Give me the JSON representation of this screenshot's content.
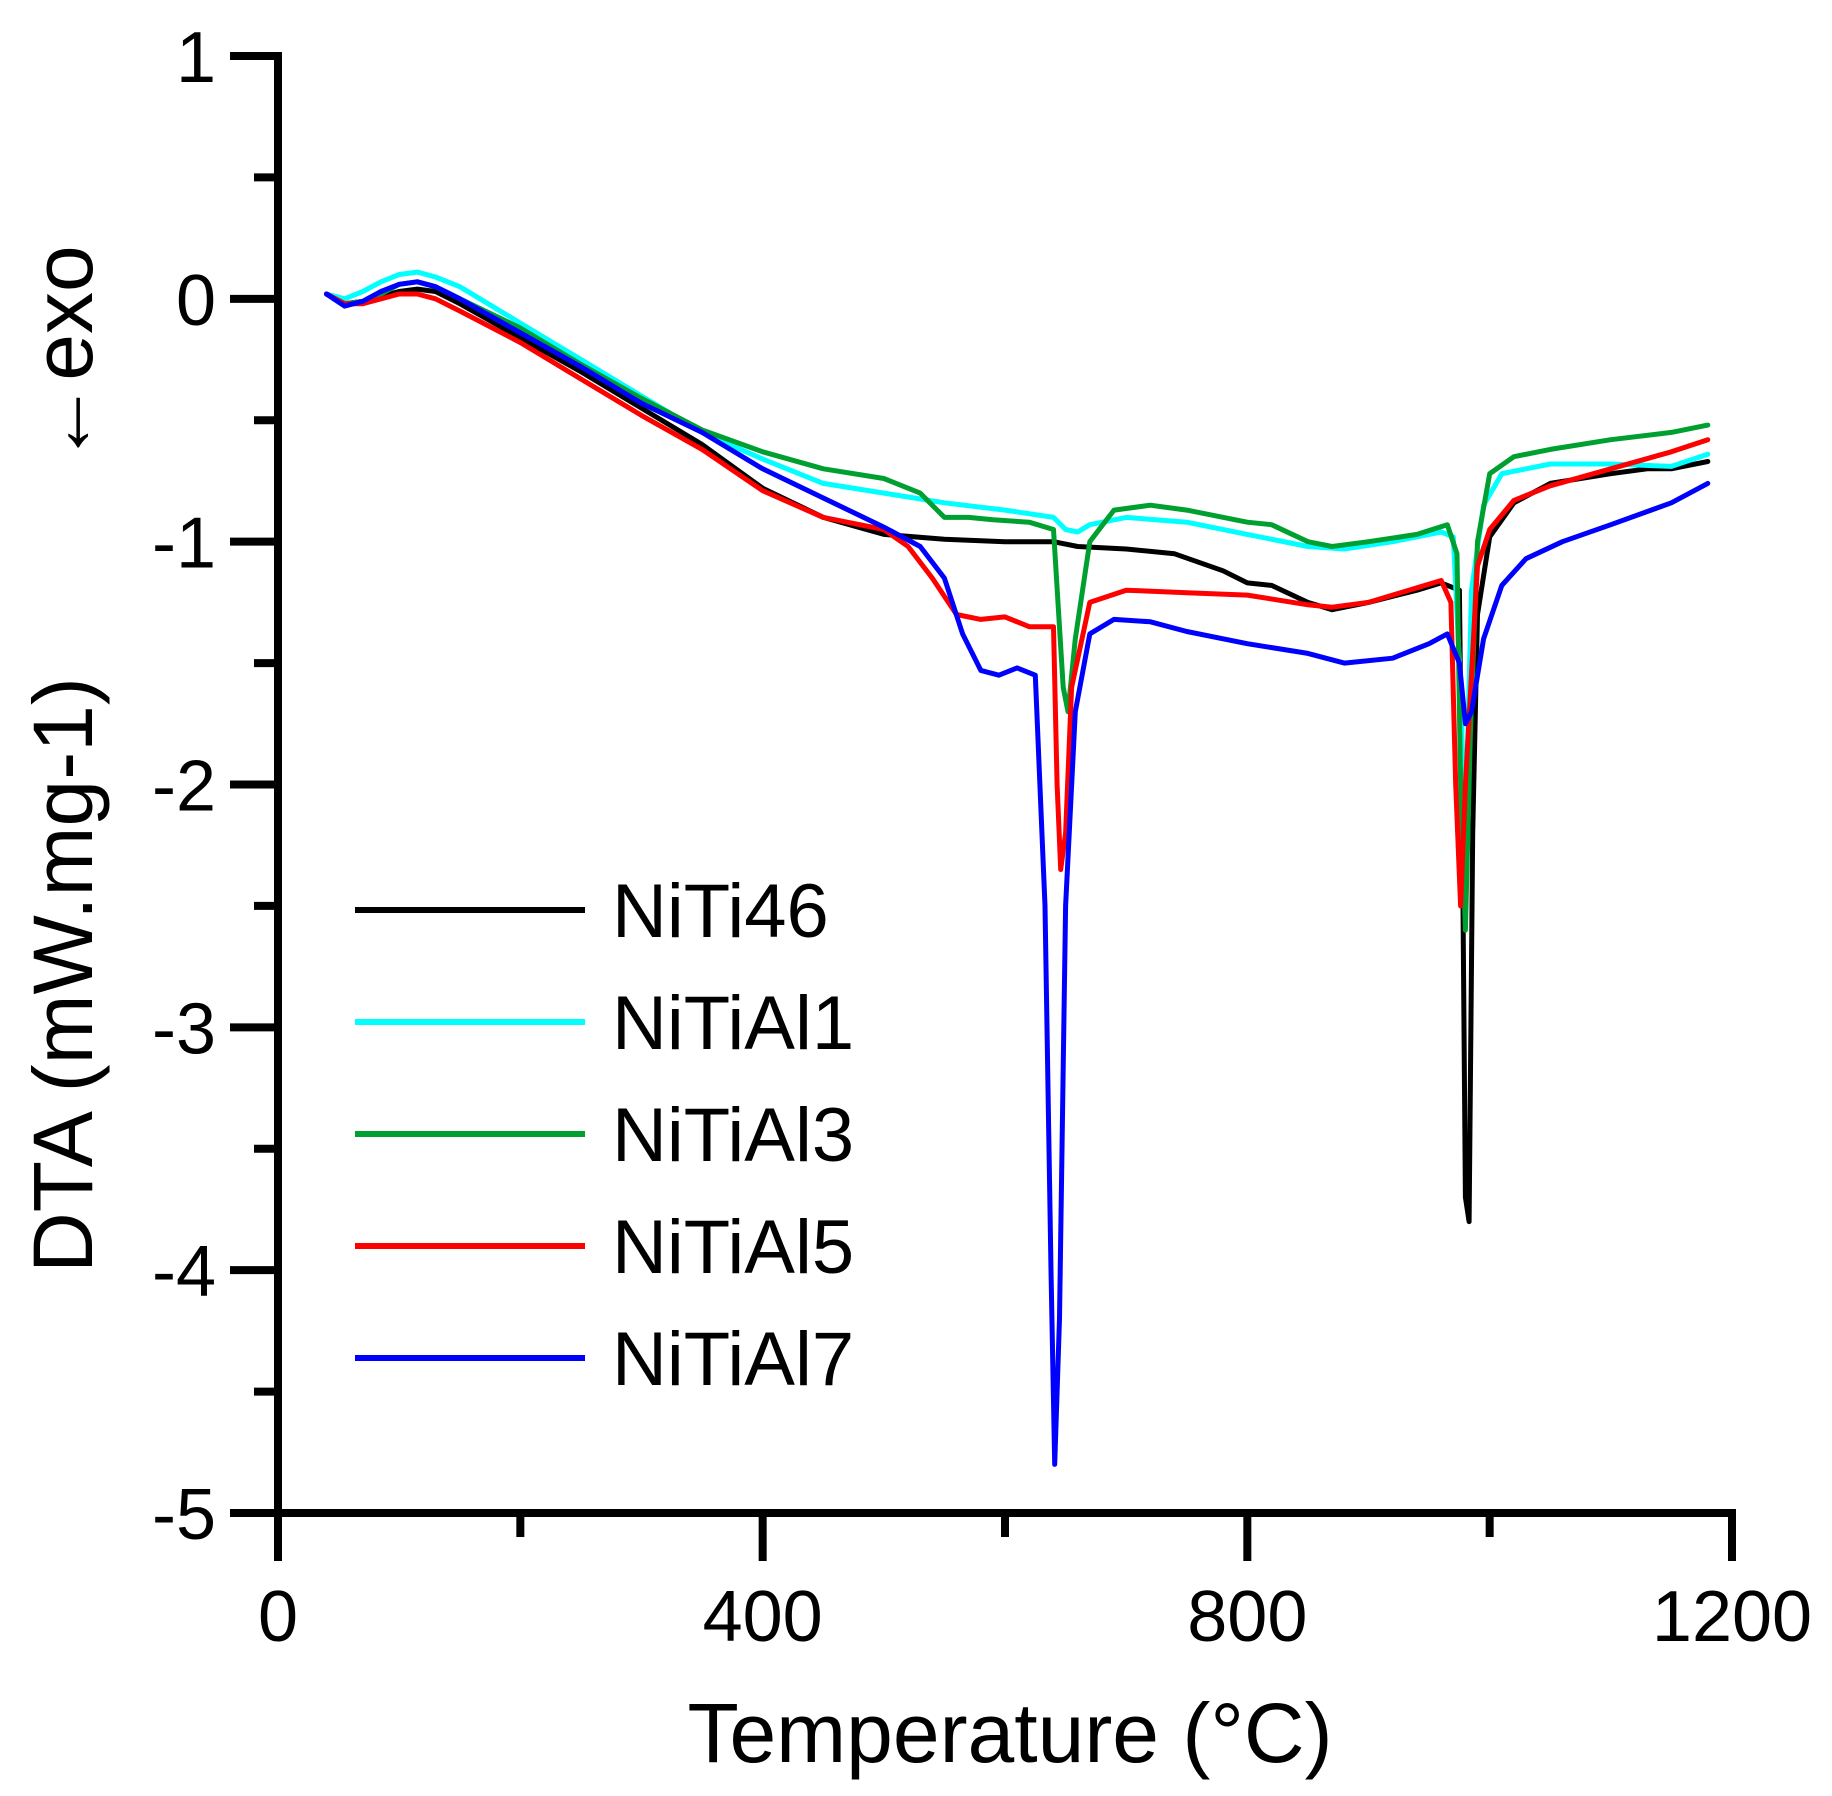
{
  "chart_data": {
    "type": "line",
    "xlabel": "Temperature (°C)",
    "ylabel": "DTA (mW.mg-1)",
    "ylabel_annotation": "←exo",
    "xlim": [
      0,
      1200
    ],
    "ylim": [
      -5,
      1
    ],
    "x_ticks": [
      0,
      400,
      800,
      1200
    ],
    "x_tick_labels": [
      "0",
      "400",
      "800",
      "1200"
    ],
    "y_ticks": [
      1,
      0,
      -1,
      -2,
      -3,
      -4,
      -5
    ],
    "y_tick_labels": [
      "1",
      "0",
      "-1",
      "-2",
      "-3",
      "-4",
      "-5"
    ],
    "grid": false,
    "legend_position": "bottom-left",
    "series": [
      {
        "name": "NiTi46",
        "color": "#000000",
        "points": [
          [
            40,
            0.02
          ],
          [
            55,
            -0.02
          ],
          [
            70,
            -0.01
          ],
          [
            85,
            0.01
          ],
          [
            100,
            0.03
          ],
          [
            115,
            0.04
          ],
          [
            130,
            0.03
          ],
          [
            150,
            -0.02
          ],
          [
            200,
            -0.16
          ],
          [
            250,
            -0.3
          ],
          [
            300,
            -0.45
          ],
          [
            350,
            -0.6
          ],
          [
            400,
            -0.78
          ],
          [
            450,
            -0.9
          ],
          [
            500,
            -0.97
          ],
          [
            550,
            -0.99
          ],
          [
            600,
            -1.0
          ],
          [
            640,
            -1.0
          ],
          [
            660,
            -1.02
          ],
          [
            700,
            -1.03
          ],
          [
            740,
            -1.05
          ],
          [
            780,
            -1.12
          ],
          [
            800,
            -1.17
          ],
          [
            820,
            -1.18
          ],
          [
            850,
            -1.25
          ],
          [
            870,
            -1.28
          ],
          [
            900,
            -1.25
          ],
          [
            940,
            -1.2
          ],
          [
            960,
            -1.17
          ],
          [
            975,
            -1.2
          ],
          [
            978,
            -2.5
          ],
          [
            980,
            -3.7
          ],
          [
            983,
            -3.8
          ],
          [
            986,
            -2.2
          ],
          [
            990,
            -1.3
          ],
          [
            1000,
            -0.98
          ],
          [
            1020,
            -0.84
          ],
          [
            1050,
            -0.76
          ],
          [
            1100,
            -0.72
          ],
          [
            1130,
            -0.7
          ],
          [
            1150,
            -0.7
          ],
          [
            1180,
            -0.67
          ]
        ]
      },
      {
        "name": "NiTiAl1",
        "color": "#00ffff",
        "points": [
          [
            40,
            0.02
          ],
          [
            55,
            0.0
          ],
          [
            70,
            0.03
          ],
          [
            85,
            0.07
          ],
          [
            100,
            0.1
          ],
          [
            115,
            0.11
          ],
          [
            130,
            0.09
          ],
          [
            150,
            0.05
          ],
          [
            200,
            -0.1
          ],
          [
            250,
            -0.25
          ],
          [
            300,
            -0.4
          ],
          [
            350,
            -0.55
          ],
          [
            400,
            -0.66
          ],
          [
            450,
            -0.76
          ],
          [
            500,
            -0.8
          ],
          [
            550,
            -0.84
          ],
          [
            600,
            -0.87
          ],
          [
            640,
            -0.9
          ],
          [
            650,
            -0.95
          ],
          [
            660,
            -0.96
          ],
          [
            670,
            -0.93
          ],
          [
            700,
            -0.9
          ],
          [
            750,
            -0.92
          ],
          [
            800,
            -0.97
          ],
          [
            850,
            -1.02
          ],
          [
            880,
            -1.03
          ],
          [
            920,
            -1.0
          ],
          [
            960,
            -0.96
          ],
          [
            970,
            -0.98
          ],
          [
            975,
            -1.5
          ],
          [
            980,
            -2.2
          ],
          [
            985,
            -1.2
          ],
          [
            995,
            -0.85
          ],
          [
            1010,
            -0.72
          ],
          [
            1050,
            -0.68
          ],
          [
            1100,
            -0.68
          ],
          [
            1150,
            -0.69
          ],
          [
            1180,
            -0.64
          ]
        ]
      },
      {
        "name": "NiTiAl3",
        "color": "#00a030",
        "points": [
          [
            40,
            0.02
          ],
          [
            55,
            -0.02
          ],
          [
            70,
            -0.01
          ],
          [
            85,
            0.02
          ],
          [
            100,
            0.06
          ],
          [
            115,
            0.07
          ],
          [
            130,
            0.05
          ],
          [
            150,
            0.0
          ],
          [
            200,
            -0.12
          ],
          [
            250,
            -0.27
          ],
          [
            300,
            -0.41
          ],
          [
            350,
            -0.54
          ],
          [
            400,
            -0.63
          ],
          [
            450,
            -0.7
          ],
          [
            500,
            -0.74
          ],
          [
            530,
            -0.8
          ],
          [
            550,
            -0.9
          ],
          [
            570,
            -0.9
          ],
          [
            590,
            -0.91
          ],
          [
            620,
            -0.92
          ],
          [
            640,
            -0.95
          ],
          [
            648,
            -1.6
          ],
          [
            652,
            -1.7
          ],
          [
            658,
            -1.4
          ],
          [
            670,
            -1.0
          ],
          [
            690,
            -0.87
          ],
          [
            720,
            -0.85
          ],
          [
            750,
            -0.87
          ],
          [
            800,
            -0.92
          ],
          [
            820,
            -0.93
          ],
          [
            850,
            -1.0
          ],
          [
            870,
            -1.02
          ],
          [
            900,
            -1.0
          ],
          [
            940,
            -0.97
          ],
          [
            965,
            -0.93
          ],
          [
            973,
            -1.05
          ],
          [
            976,
            -2.0
          ],
          [
            980,
            -2.6
          ],
          [
            984,
            -1.8
          ],
          [
            990,
            -1.0
          ],
          [
            1000,
            -0.72
          ],
          [
            1020,
            -0.65
          ],
          [
            1050,
            -0.62
          ],
          [
            1100,
            -0.58
          ],
          [
            1150,
            -0.55
          ],
          [
            1180,
            -0.52
          ]
        ]
      },
      {
        "name": "NiTiAl5",
        "color": "#ff0000",
        "points": [
          [
            40,
            0.02
          ],
          [
            55,
            -0.02
          ],
          [
            70,
            -0.02
          ],
          [
            85,
            0.0
          ],
          [
            100,
            0.02
          ],
          [
            115,
            0.02
          ],
          [
            130,
            0.0
          ],
          [
            150,
            -0.05
          ],
          [
            200,
            -0.18
          ],
          [
            250,
            -0.33
          ],
          [
            300,
            -0.48
          ],
          [
            350,
            -0.62
          ],
          [
            400,
            -0.79
          ],
          [
            450,
            -0.9
          ],
          [
            500,
            -0.95
          ],
          [
            520,
            -1.02
          ],
          [
            540,
            -1.15
          ],
          [
            560,
            -1.3
          ],
          [
            580,
            -1.32
          ],
          [
            600,
            -1.31
          ],
          [
            620,
            -1.35
          ],
          [
            640,
            -1.35
          ],
          [
            643,
            -2.0
          ],
          [
            646,
            -2.35
          ],
          [
            650,
            -2.2
          ],
          [
            655,
            -1.6
          ],
          [
            670,
            -1.25
          ],
          [
            700,
            -1.2
          ],
          [
            750,
            -1.21
          ],
          [
            800,
            -1.22
          ],
          [
            850,
            -1.26
          ],
          [
            870,
            -1.27
          ],
          [
            900,
            -1.25
          ],
          [
            940,
            -1.19
          ],
          [
            960,
            -1.16
          ],
          [
            968,
            -1.25
          ],
          [
            972,
            -2.0
          ],
          [
            976,
            -2.5
          ],
          [
            980,
            -2.0
          ],
          [
            990,
            -1.1
          ],
          [
            1000,
            -0.95
          ],
          [
            1020,
            -0.83
          ],
          [
            1050,
            -0.77
          ],
          [
            1100,
            -0.7
          ],
          [
            1150,
            -0.63
          ],
          [
            1180,
            -0.58
          ]
        ]
      },
      {
        "name": "NiTiAl7",
        "color": "#0000ff",
        "points": [
          [
            40,
            0.02
          ],
          [
            55,
            -0.03
          ],
          [
            70,
            -0.01
          ],
          [
            85,
            0.03
          ],
          [
            100,
            0.06
          ],
          [
            115,
            0.07
          ],
          [
            130,
            0.05
          ],
          [
            150,
            0.0
          ],
          [
            200,
            -0.14
          ],
          [
            250,
            -0.28
          ],
          [
            300,
            -0.43
          ],
          [
            350,
            -0.55
          ],
          [
            400,
            -0.7
          ],
          [
            450,
            -0.82
          ],
          [
            500,
            -0.94
          ],
          [
            530,
            -1.02
          ],
          [
            550,
            -1.15
          ],
          [
            565,
            -1.38
          ],
          [
            580,
            -1.53
          ],
          [
            595,
            -1.55
          ],
          [
            610,
            -1.52
          ],
          [
            625,
            -1.55
          ],
          [
            633,
            -2.5
          ],
          [
            638,
            -4.0
          ],
          [
            641,
            -4.8
          ],
          [
            645,
            -4.2
          ],
          [
            650,
            -2.5
          ],
          [
            658,
            -1.7
          ],
          [
            670,
            -1.38
          ],
          [
            690,
            -1.32
          ],
          [
            720,
            -1.33
          ],
          [
            750,
            -1.37
          ],
          [
            800,
            -1.42
          ],
          [
            850,
            -1.46
          ],
          [
            880,
            -1.5
          ],
          [
            920,
            -1.48
          ],
          [
            950,
            -1.42
          ],
          [
            965,
            -1.38
          ],
          [
            975,
            -1.5
          ],
          [
            980,
            -1.75
          ],
          [
            985,
            -1.7
          ],
          [
            995,
            -1.4
          ],
          [
            1010,
            -1.18
          ],
          [
            1030,
            -1.07
          ],
          [
            1060,
            -1.0
          ],
          [
            1100,
            -0.93
          ],
          [
            1150,
            -0.84
          ],
          [
            1180,
            -0.76
          ]
        ]
      }
    ]
  }
}
